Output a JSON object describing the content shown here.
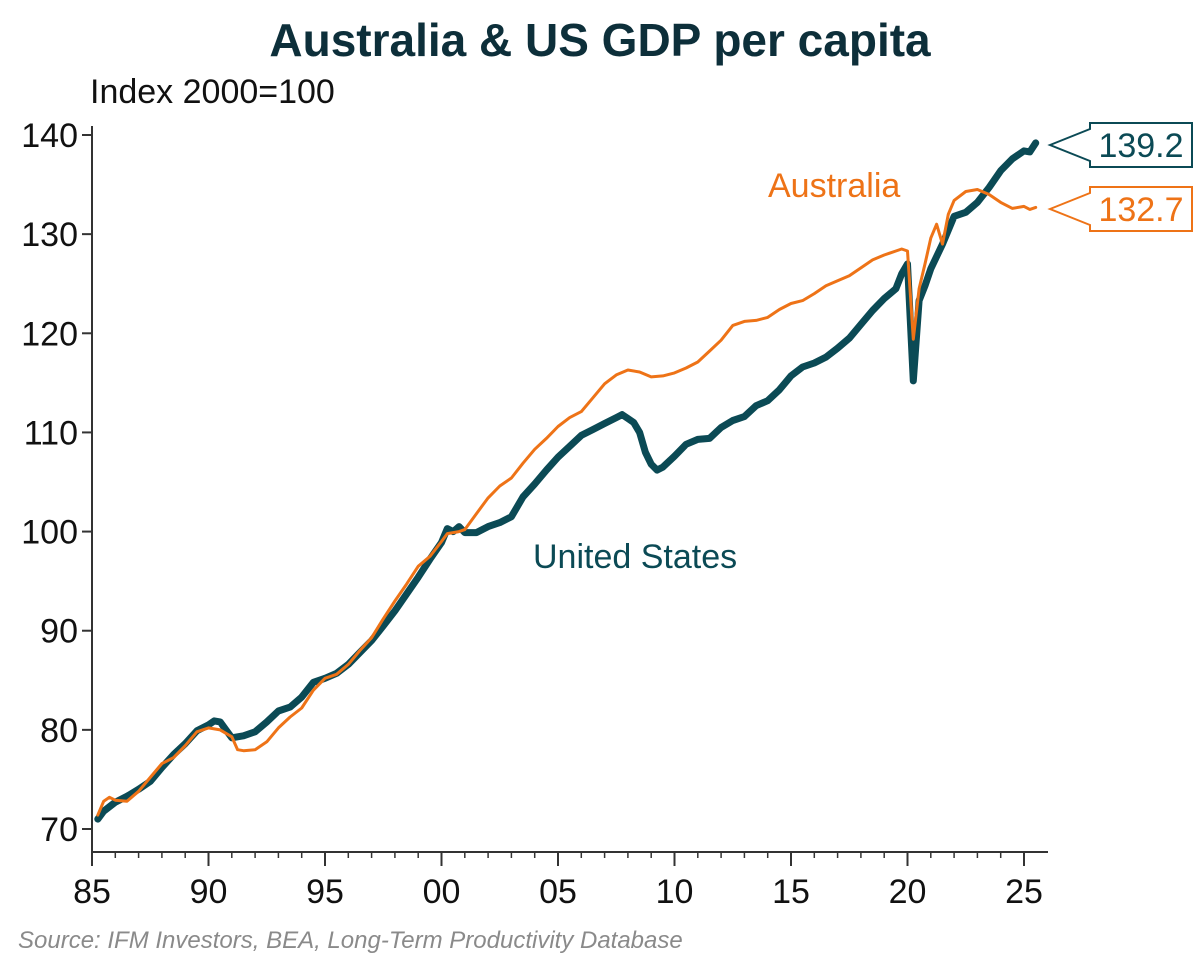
{
  "colors": {
    "us": "#0b4a55",
    "australia": "#ee7317",
    "title": "#0d2f3a",
    "axis": "#333333"
  },
  "source": "Source: IFM Investors, BEA, Long-Term Productivity Database",
  "chart_data": {
    "type": "line",
    "title": "Australia & US GDP per capita",
    "subtitle": "Index 2000=100",
    "xlabel": "",
    "ylabel": "",
    "xlim": [
      1985,
      2025.75
    ],
    "ylim": [
      70,
      140
    ],
    "x_ticks": [
      1985,
      1990,
      1995,
      2000,
      2005,
      2010,
      2015,
      2020,
      2025
    ],
    "x_tick_labels": [
      "85",
      "90",
      "95",
      "00",
      "05",
      "10",
      "15",
      "20",
      "25"
    ],
    "y_ticks": [
      70,
      80,
      90,
      100,
      110,
      120,
      130,
      140
    ],
    "y_tick_labels": [
      "70",
      "80",
      "90",
      "100",
      "110",
      "120",
      "130",
      "140"
    ],
    "grid": false,
    "series": [
      {
        "name": "United States",
        "color": "#0b4a55",
        "callout": "139.2",
        "points": [
          [
            1985.25,
            71.0
          ],
          [
            1985.5,
            71.8
          ],
          [
            1986.0,
            72.7
          ],
          [
            1986.5,
            73.3
          ],
          [
            1987.0,
            74.0
          ],
          [
            1987.5,
            74.8
          ],
          [
            1988.0,
            76.2
          ],
          [
            1988.5,
            77.5
          ],
          [
            1989.0,
            78.6
          ],
          [
            1989.5,
            79.9
          ],
          [
            1990.0,
            80.5
          ],
          [
            1990.25,
            80.9
          ],
          [
            1990.5,
            80.8
          ],
          [
            1990.75,
            80.0
          ],
          [
            1991.0,
            79.2
          ],
          [
            1991.5,
            79.4
          ],
          [
            1992.0,
            79.8
          ],
          [
            1992.5,
            80.8
          ],
          [
            1993.0,
            81.9
          ],
          [
            1993.5,
            82.3
          ],
          [
            1994.0,
            83.3
          ],
          [
            1994.5,
            84.8
          ],
          [
            1995.0,
            85.2
          ],
          [
            1995.5,
            85.7
          ],
          [
            1996.0,
            86.6
          ],
          [
            1996.5,
            87.8
          ],
          [
            1997.0,
            89.0
          ],
          [
            1997.5,
            90.5
          ],
          [
            1998.0,
            92.0
          ],
          [
            1998.5,
            93.7
          ],
          [
            1999.0,
            95.4
          ],
          [
            1999.5,
            97.2
          ],
          [
            2000.0,
            98.9
          ],
          [
            2000.25,
            100.3
          ],
          [
            2000.5,
            100.0
          ],
          [
            2000.75,
            100.5
          ],
          [
            2001.0,
            99.9
          ],
          [
            2001.5,
            99.9
          ],
          [
            2002.0,
            100.5
          ],
          [
            2002.5,
            100.9
          ],
          [
            2003.0,
            101.5
          ],
          [
            2003.5,
            103.5
          ],
          [
            2004.0,
            104.8
          ],
          [
            2004.5,
            106.2
          ],
          [
            2005.0,
            107.5
          ],
          [
            2005.5,
            108.6
          ],
          [
            2006.0,
            109.7
          ],
          [
            2006.5,
            110.3
          ],
          [
            2007.0,
            110.9
          ],
          [
            2007.5,
            111.5
          ],
          [
            2007.75,
            111.8
          ],
          [
            2008.0,
            111.4
          ],
          [
            2008.25,
            111.0
          ],
          [
            2008.5,
            110.0
          ],
          [
            2008.75,
            108.0
          ],
          [
            2009.0,
            106.8
          ],
          [
            2009.25,
            106.2
          ],
          [
            2009.5,
            106.5
          ],
          [
            2010.0,
            107.6
          ],
          [
            2010.5,
            108.8
          ],
          [
            2011.0,
            109.3
          ],
          [
            2011.5,
            109.4
          ],
          [
            2012.0,
            110.5
          ],
          [
            2012.5,
            111.2
          ],
          [
            2013.0,
            111.6
          ],
          [
            2013.5,
            112.7
          ],
          [
            2014.0,
            113.2
          ],
          [
            2014.5,
            114.3
          ],
          [
            2015.0,
            115.7
          ],
          [
            2015.5,
            116.6
          ],
          [
            2016.0,
            117.0
          ],
          [
            2016.5,
            117.6
          ],
          [
            2017.0,
            118.5
          ],
          [
            2017.5,
            119.5
          ],
          [
            2018.0,
            120.9
          ],
          [
            2018.5,
            122.3
          ],
          [
            2019.0,
            123.5
          ],
          [
            2019.5,
            124.5
          ],
          [
            2019.75,
            126.0
          ],
          [
            2020.0,
            127.0
          ],
          [
            2020.25,
            115.2
          ],
          [
            2020.5,
            123.3
          ],
          [
            2020.75,
            124.8
          ],
          [
            2021.0,
            126.5
          ],
          [
            2021.5,
            129.0
          ],
          [
            2022.0,
            131.8
          ],
          [
            2022.5,
            132.2
          ],
          [
            2023.0,
            133.2
          ],
          [
            2023.5,
            134.7
          ],
          [
            2024.0,
            136.4
          ],
          [
            2024.5,
            137.6
          ],
          [
            2025.0,
            138.4
          ],
          [
            2025.25,
            138.3
          ],
          [
            2025.5,
            139.2
          ]
        ]
      },
      {
        "name": "Australia",
        "color": "#ee7317",
        "callout": "132.7",
        "points": [
          [
            1985.25,
            71.4
          ],
          [
            1985.5,
            72.8
          ],
          [
            1985.75,
            73.2
          ],
          [
            1986.0,
            72.9
          ],
          [
            1986.5,
            72.8
          ],
          [
            1987.0,
            73.8
          ],
          [
            1987.5,
            75.2
          ],
          [
            1988.0,
            76.6
          ],
          [
            1988.5,
            77.2
          ],
          [
            1989.0,
            78.4
          ],
          [
            1989.5,
            79.8
          ],
          [
            1990.0,
            80.2
          ],
          [
            1990.5,
            80.0
          ],
          [
            1991.0,
            79.3
          ],
          [
            1991.25,
            78.0
          ],
          [
            1991.5,
            77.9
          ],
          [
            1992.0,
            78.0
          ],
          [
            1992.5,
            78.8
          ],
          [
            1993.0,
            80.2
          ],
          [
            1993.5,
            81.3
          ],
          [
            1994.0,
            82.2
          ],
          [
            1994.5,
            84.0
          ],
          [
            1995.0,
            85.2
          ],
          [
            1995.5,
            85.6
          ],
          [
            1996.0,
            86.6
          ],
          [
            1996.5,
            88.0
          ],
          [
            1997.0,
            89.3
          ],
          [
            1997.5,
            91.2
          ],
          [
            1998.0,
            93.0
          ],
          [
            1998.5,
            94.7
          ],
          [
            1999.0,
            96.5
          ],
          [
            1999.5,
            97.5
          ],
          [
            2000.0,
            99.0
          ],
          [
            2000.25,
            99.8
          ],
          [
            2000.5,
            99.9
          ],
          [
            2000.75,
            100.0
          ],
          [
            2001.0,
            100.2
          ],
          [
            2001.5,
            101.8
          ],
          [
            2002.0,
            103.4
          ],
          [
            2002.5,
            104.6
          ],
          [
            2003.0,
            105.4
          ],
          [
            2003.5,
            106.9
          ],
          [
            2004.0,
            108.3
          ],
          [
            2004.5,
            109.4
          ],
          [
            2005.0,
            110.6
          ],
          [
            2005.5,
            111.5
          ],
          [
            2006.0,
            112.1
          ],
          [
            2006.5,
            113.5
          ],
          [
            2007.0,
            114.9
          ],
          [
            2007.5,
            115.8
          ],
          [
            2008.0,
            116.3
          ],
          [
            2008.5,
            116.1
          ],
          [
            2009.0,
            115.6
          ],
          [
            2009.5,
            115.7
          ],
          [
            2010.0,
            116.0
          ],
          [
            2010.5,
            116.5
          ],
          [
            2011.0,
            117.1
          ],
          [
            2011.5,
            118.2
          ],
          [
            2012.0,
            119.3
          ],
          [
            2012.5,
            120.8
          ],
          [
            2013.0,
            121.2
          ],
          [
            2013.5,
            121.3
          ],
          [
            2014.0,
            121.6
          ],
          [
            2014.5,
            122.4
          ],
          [
            2015.0,
            123.0
          ],
          [
            2015.5,
            123.3
          ],
          [
            2016.0,
            124.0
          ],
          [
            2016.5,
            124.8
          ],
          [
            2017.0,
            125.3
          ],
          [
            2017.5,
            125.8
          ],
          [
            2018.0,
            126.6
          ],
          [
            2018.5,
            127.4
          ],
          [
            2019.0,
            127.9
          ],
          [
            2019.5,
            128.3
          ],
          [
            2019.75,
            128.5
          ],
          [
            2020.0,
            128.3
          ],
          [
            2020.25,
            119.4
          ],
          [
            2020.5,
            124.5
          ],
          [
            2020.75,
            127.0
          ],
          [
            2021.0,
            129.6
          ],
          [
            2021.25,
            131.0
          ],
          [
            2021.5,
            129.0
          ],
          [
            2021.75,
            132.0
          ],
          [
            2022.0,
            133.4
          ],
          [
            2022.5,
            134.3
          ],
          [
            2023.0,
            134.5
          ],
          [
            2023.5,
            134.0
          ],
          [
            2024.0,
            133.2
          ],
          [
            2024.5,
            132.6
          ],
          [
            2025.0,
            132.8
          ],
          [
            2025.25,
            132.5
          ],
          [
            2025.5,
            132.7
          ]
        ]
      }
    ]
  }
}
